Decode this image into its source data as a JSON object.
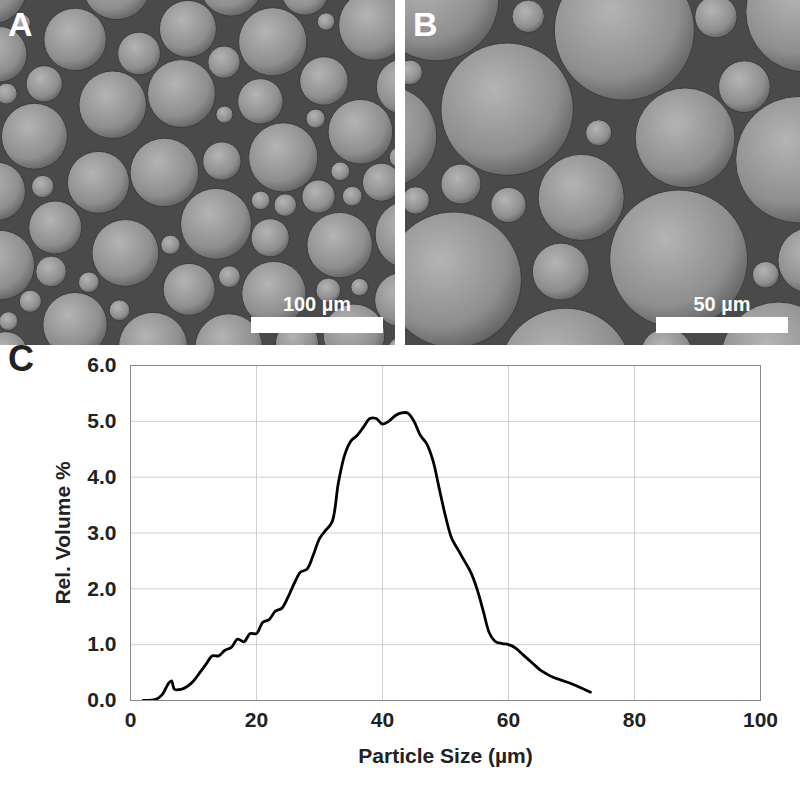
{
  "panels": [
    {
      "label": "A",
      "scale_bar": "100 µm"
    },
    {
      "label": "B",
      "scale_bar": "50 µm"
    }
  ],
  "chart_data": {
    "type": "line",
    "panel_label": "C",
    "x_label": "Particle Size (µm)",
    "y_label": "Rel. Volume %",
    "x": [
      2,
      4,
      5,
      6,
      6.5,
      7,
      8,
      9,
      10,
      11,
      12,
      13,
      14,
      15,
      16,
      17,
      18,
      19,
      20,
      21,
      22,
      23,
      24,
      25,
      26,
      27,
      28,
      29,
      30,
      31,
      32,
      33,
      34,
      35,
      36,
      37,
      38,
      39,
      40,
      41,
      42,
      43,
      44,
      45,
      46,
      47,
      48,
      49,
      50,
      51,
      52,
      53,
      54,
      55,
      56,
      57,
      58,
      59,
      60,
      61,
      62,
      63,
      64,
      65,
      66,
      67,
      68,
      69,
      70,
      71,
      72,
      73
    ],
    "series": [
      {
        "color": "#000000",
        "values": [
          0,
          0.02,
          0.1,
          0.3,
          0.35,
          0.2,
          0.2,
          0.25,
          0.35,
          0.5,
          0.65,
          0.8,
          0.8,
          0.9,
          0.95,
          1.1,
          1.05,
          1.2,
          1.2,
          1.4,
          1.45,
          1.6,
          1.65,
          1.85,
          2.1,
          2.3,
          2.35,
          2.6,
          2.9,
          3.05,
          3.2,
          3.9,
          4.4,
          4.65,
          4.75,
          4.9,
          5.05,
          5.05,
          4.95,
          5.0,
          5.1,
          5.15,
          5.15,
          5.0,
          4.75,
          4.6,
          4.3,
          3.8,
          3.3,
          2.9,
          2.7,
          2.5,
          2.3,
          2.0,
          1.6,
          1.2,
          1.05,
          1.02,
          1.0,
          0.95,
          0.85,
          0.75,
          0.65,
          0.55,
          0.48,
          0.42,
          0.38,
          0.34,
          0.3,
          0.25,
          0.2,
          0.15
        ]
      }
    ],
    "xlim": [
      0,
      100
    ],
    "xticks": [
      0,
      20,
      40,
      60,
      80,
      100
    ],
    "ylim": [
      0,
      6
    ],
    "yticks": [
      0,
      1,
      2,
      3,
      4,
      5,
      6
    ],
    "grid": true
  }
}
